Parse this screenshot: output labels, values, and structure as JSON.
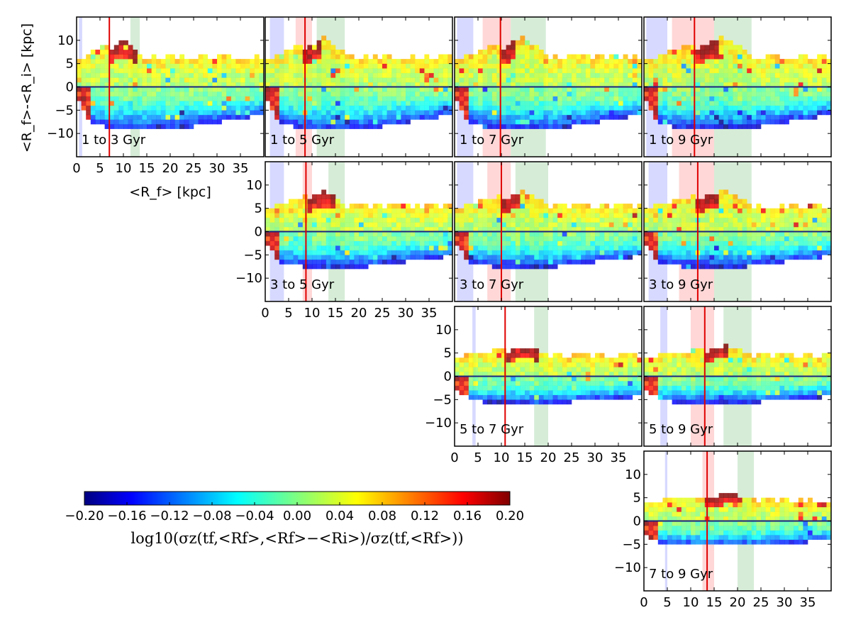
{
  "chart_data": {
    "type": "heatmap",
    "panels": [
      {
        "label": "1 to 3 Gyr",
        "row": 0,
        "col": 0,
        "red_line": 7.0,
        "blue_band": [
          0.5,
          1.2
        ],
        "red_band": null,
        "green_band": [
          11.5,
          13.5
        ]
      },
      {
        "label": "1 to 5 Gyr",
        "row": 0,
        "col": 1,
        "red_line": 8.5,
        "blue_band": [
          1.0,
          4.0
        ],
        "red_band": [
          6.5,
          10.0
        ],
        "green_band": [
          11.0,
          17.0
        ]
      },
      {
        "label": "1 to 7 Gyr",
        "row": 0,
        "col": 2,
        "red_line": 9.8,
        "blue_band": [
          0.5,
          4.0
        ],
        "red_band": [
          6.0,
          12.0
        ],
        "green_band": [
          12.0,
          19.5
        ]
      },
      {
        "label": "1 to 9 Gyr",
        "row": 0,
        "col": 3,
        "red_line": 10.8,
        "blue_band": [
          0.5,
          5.0
        ],
        "red_band": [
          6.0,
          15.0
        ],
        "green_band": [
          15.0,
          23.0
        ]
      },
      {
        "label": "3 to 5 Gyr",
        "row": 1,
        "col": 1,
        "red_line": 8.7,
        "blue_band": [
          1.0,
          4.0
        ],
        "red_band": [
          8.0,
          10.0
        ],
        "green_band": [
          13.5,
          17.0
        ]
      },
      {
        "label": "3 to 7 Gyr",
        "row": 1,
        "col": 2,
        "red_line": 10.0,
        "blue_band": [
          0.5,
          4.0
        ],
        "red_band": [
          7.0,
          12.0
        ],
        "green_band": [
          13.0,
          20.0
        ]
      },
      {
        "label": "3 to 9 Gyr",
        "row": 1,
        "col": 3,
        "red_line": 11.5,
        "blue_band": [
          1.0,
          5.0
        ],
        "red_band": [
          7.5,
          15.0
        ],
        "green_band": [
          15.0,
          23.0
        ]
      },
      {
        "label": "5 to 7 Gyr",
        "row": 2,
        "col": 2,
        "red_line": 10.8,
        "blue_band": [
          3.8,
          4.5
        ],
        "red_band": null,
        "green_band": [
          17.0,
          20.0
        ]
      },
      {
        "label": "5 to 9 Gyr",
        "row": 2,
        "col": 3,
        "red_line": 13.0,
        "blue_band": [
          3.5,
          5.0
        ],
        "red_band": [
          10.0,
          15.0
        ],
        "green_band": [
          17.0,
          23.0
        ]
      },
      {
        "label": "7 to 9 Gyr",
        "row": 3,
        "col": 3,
        "red_line": 13.5,
        "blue_band": [
          4.5,
          5.0
        ],
        "red_band": [
          12.5,
          15.0
        ],
        "green_band": [
          20.0,
          23.5
        ]
      }
    ],
    "xlabel": "<R_f> [kpc]",
    "ylabel": "<R_f>-<R_i> [kpc]",
    "xlim": [
      0,
      40
    ],
    "ylim": [
      -15,
      15
    ],
    "xticks": [
      "0",
      "5",
      "10",
      "15",
      "20",
      "25",
      "30",
      "35"
    ],
    "yticks": [
      "10",
      "5",
      "0",
      "−5",
      "−10"
    ],
    "grid": false,
    "colorbar": {
      "colormap": "jet",
      "range": [
        -0.2,
        0.2
      ],
      "ticks": [
        "−0.20",
        "−0.16",
        "−0.12",
        "−0.08",
        "−0.04",
        "0.00",
        "0.04",
        "0.08",
        "0.12",
        "0.16",
        "0.20"
      ],
      "label": "log10(σz(tf,<Rf>,<Rf>−<Ri>)/σz(tf,<Rf>))"
    }
  },
  "colors": {
    "zero_line": "#1a237e",
    "marker_line": "#e00000",
    "blue_band": "#c9ccff",
    "red_band": "#ffc9c9",
    "green_band": "#c8e6c9"
  }
}
